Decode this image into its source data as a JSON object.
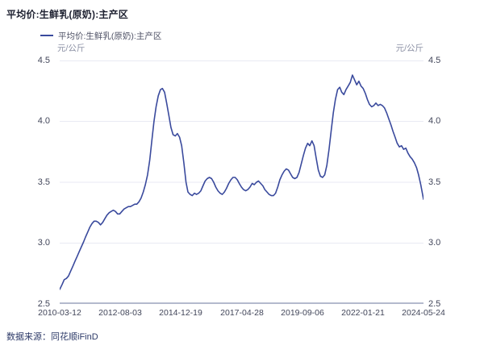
{
  "header": {
    "title": "平均价:生鲜乳(原奶):主产区"
  },
  "legend": {
    "label": "平均价:生鲜乳(原奶):主产区"
  },
  "units": {
    "left": "元/公斤",
    "right": "元/公斤"
  },
  "footer": {
    "source": "数据来源：同花顺iFinD"
  },
  "colors": {
    "line": "#3a4a9d",
    "title_text": "#1d2030",
    "legend_text": "#4f5266",
    "axis_text": "#42465a",
    "unit_text": "#8b90a4",
    "gridline": "#e9eaf3",
    "axis_line": "#b4bacd",
    "source_text": "#2d3a68"
  },
  "chart_data": {
    "type": "line",
    "title": "平均价:生鲜乳(原奶):主产区",
    "xlabel": "",
    "ylabel": "元/公斤",
    "ylim": [
      2.5,
      4.5
    ],
    "grid": true,
    "legend_position": "top-left",
    "y_ticks": [
      "4.5",
      "4.0",
      "3.5",
      "3.0",
      "2.5"
    ],
    "x_ticks": [
      "2010-03-12",
      "2012-08-03",
      "2014-12-19",
      "2017-04-28",
      "2019-09-06",
      "2022-01-21",
      "2024-05-24"
    ],
    "x_range": [
      "2010-03-12",
      "2024-05-24"
    ],
    "series": [
      {
        "name": "平均价:生鲜乳(原奶):主产区",
        "color": "#3a4a9d",
        "points": [
          [
            "2010-03-12",
            2.62
          ],
          [
            "2010-04-15",
            2.66
          ],
          [
            "2010-05-15",
            2.7
          ],
          [
            "2010-06-15",
            2.71
          ],
          [
            "2010-07-15",
            2.73
          ],
          [
            "2010-08-15",
            2.77
          ],
          [
            "2010-09-15",
            2.81
          ],
          [
            "2010-10-15",
            2.85
          ],
          [
            "2010-11-15",
            2.89
          ],
          [
            "2010-12-15",
            2.93
          ],
          [
            "2011-01-15",
            2.97
          ],
          [
            "2011-02-15",
            3.01
          ],
          [
            "2011-03-15",
            3.05
          ],
          [
            "2011-04-15",
            3.09
          ],
          [
            "2011-05-15",
            3.13
          ],
          [
            "2011-06-15",
            3.16
          ],
          [
            "2011-07-15",
            3.18
          ],
          [
            "2011-08-15",
            3.18
          ],
          [
            "2011-09-15",
            3.17
          ],
          [
            "2011-10-15",
            3.15
          ],
          [
            "2011-11-15",
            3.17
          ],
          [
            "2011-12-15",
            3.2
          ],
          [
            "2012-01-15",
            3.23
          ],
          [
            "2012-02-15",
            3.25
          ],
          [
            "2012-03-15",
            3.26
          ],
          [
            "2012-04-15",
            3.27
          ],
          [
            "2012-05-15",
            3.26
          ],
          [
            "2012-06-15",
            3.24
          ],
          [
            "2012-07-15",
            3.24
          ],
          [
            "2012-08-15",
            3.26
          ],
          [
            "2012-09-15",
            3.28
          ],
          [
            "2012-10-15",
            3.29
          ],
          [
            "2012-11-15",
            3.3
          ],
          [
            "2012-12-15",
            3.3
          ],
          [
            "2013-01-15",
            3.31
          ],
          [
            "2013-02-15",
            3.32
          ],
          [
            "2013-03-15",
            3.32
          ],
          [
            "2013-04-15",
            3.34
          ],
          [
            "2013-05-15",
            3.37
          ],
          [
            "2013-06-15",
            3.42
          ],
          [
            "2013-07-15",
            3.48
          ],
          [
            "2013-08-15",
            3.56
          ],
          [
            "2013-09-15",
            3.68
          ],
          [
            "2013-10-15",
            3.84
          ],
          [
            "2013-11-15",
            4.0
          ],
          [
            "2013-12-15",
            4.12
          ],
          [
            "2014-01-15",
            4.21
          ],
          [
            "2014-02-15",
            4.26
          ],
          [
            "2014-03-15",
            4.27
          ],
          [
            "2014-04-15",
            4.24
          ],
          [
            "2014-05-15",
            4.15
          ],
          [
            "2014-06-15",
            4.05
          ],
          [
            "2014-07-15",
            3.95
          ],
          [
            "2014-08-15",
            3.89
          ],
          [
            "2014-09-15",
            3.88
          ],
          [
            "2014-10-15",
            3.9
          ],
          [
            "2014-11-15",
            3.87
          ],
          [
            "2014-12-15",
            3.8
          ],
          [
            "2015-01-15",
            3.66
          ],
          [
            "2015-02-15",
            3.5
          ],
          [
            "2015-03-15",
            3.42
          ],
          [
            "2015-04-15",
            3.4
          ],
          [
            "2015-05-15",
            3.39
          ],
          [
            "2015-06-15",
            3.41
          ],
          [
            "2015-07-15",
            3.4
          ],
          [
            "2015-08-15",
            3.41
          ],
          [
            "2015-09-15",
            3.43
          ],
          [
            "2015-10-15",
            3.47
          ],
          [
            "2015-11-15",
            3.51
          ],
          [
            "2015-12-15",
            3.53
          ],
          [
            "2016-01-15",
            3.54
          ],
          [
            "2016-02-15",
            3.53
          ],
          [
            "2016-03-15",
            3.5
          ],
          [
            "2016-04-15",
            3.46
          ],
          [
            "2016-05-15",
            3.43
          ],
          [
            "2016-06-15",
            3.41
          ],
          [
            "2016-07-15",
            3.4
          ],
          [
            "2016-08-15",
            3.42
          ],
          [
            "2016-09-15",
            3.45
          ],
          [
            "2016-10-15",
            3.49
          ],
          [
            "2016-11-15",
            3.52
          ],
          [
            "2016-12-15",
            3.54
          ],
          [
            "2017-01-15",
            3.54
          ],
          [
            "2017-02-15",
            3.52
          ],
          [
            "2017-03-15",
            3.49
          ],
          [
            "2017-04-15",
            3.46
          ],
          [
            "2017-05-15",
            3.44
          ],
          [
            "2017-06-15",
            3.43
          ],
          [
            "2017-07-15",
            3.44
          ],
          [
            "2017-08-15",
            3.46
          ],
          [
            "2017-09-15",
            3.49
          ],
          [
            "2017-10-15",
            3.48
          ],
          [
            "2017-11-15",
            3.5
          ],
          [
            "2017-12-15",
            3.51
          ],
          [
            "2018-01-15",
            3.49
          ],
          [
            "2018-02-15",
            3.47
          ],
          [
            "2018-03-15",
            3.44
          ],
          [
            "2018-04-15",
            3.42
          ],
          [
            "2018-05-15",
            3.4
          ],
          [
            "2018-06-15",
            3.39
          ],
          [
            "2018-07-15",
            3.39
          ],
          [
            "2018-08-15",
            3.41
          ],
          [
            "2018-09-15",
            3.46
          ],
          [
            "2018-10-15",
            3.52
          ],
          [
            "2018-11-15",
            3.56
          ],
          [
            "2018-12-15",
            3.59
          ],
          [
            "2019-01-15",
            3.61
          ],
          [
            "2019-02-15",
            3.6
          ],
          [
            "2019-03-15",
            3.57
          ],
          [
            "2019-04-15",
            3.54
          ],
          [
            "2019-05-15",
            3.53
          ],
          [
            "2019-06-15",
            3.54
          ],
          [
            "2019-07-15",
            3.58
          ],
          [
            "2019-08-15",
            3.65
          ],
          [
            "2019-09-15",
            3.72
          ],
          [
            "2019-10-15",
            3.78
          ],
          [
            "2019-11-15",
            3.82
          ],
          [
            "2019-12-15",
            3.8
          ],
          [
            "2020-01-15",
            3.84
          ],
          [
            "2020-02-15",
            3.8
          ],
          [
            "2020-03-15",
            3.7
          ],
          [
            "2020-04-15",
            3.6
          ],
          [
            "2020-05-15",
            3.55
          ],
          [
            "2020-06-15",
            3.54
          ],
          [
            "2020-07-15",
            3.56
          ],
          [
            "2020-08-15",
            3.64
          ],
          [
            "2020-09-15",
            3.77
          ],
          [
            "2020-10-15",
            3.92
          ],
          [
            "2020-11-15",
            4.07
          ],
          [
            "2020-12-15",
            4.18
          ],
          [
            "2021-01-15",
            4.26
          ],
          [
            "2021-02-15",
            4.28
          ],
          [
            "2021-03-15",
            4.24
          ],
          [
            "2021-04-15",
            4.22
          ],
          [
            "2021-05-15",
            4.26
          ],
          [
            "2021-06-15",
            4.29
          ],
          [
            "2021-07-15",
            4.32
          ],
          [
            "2021-08-15",
            4.38
          ],
          [
            "2021-09-15",
            4.34
          ],
          [
            "2021-10-15",
            4.3
          ],
          [
            "2021-11-15",
            4.33
          ],
          [
            "2021-12-15",
            4.29
          ],
          [
            "2022-01-15",
            4.27
          ],
          [
            "2022-02-15",
            4.23
          ],
          [
            "2022-03-15",
            4.18
          ],
          [
            "2022-04-15",
            4.14
          ],
          [
            "2022-05-15",
            4.12
          ],
          [
            "2022-06-15",
            4.13
          ],
          [
            "2022-07-15",
            4.15
          ],
          [
            "2022-08-15",
            4.13
          ],
          [
            "2022-09-15",
            4.14
          ],
          [
            "2022-10-15",
            4.13
          ],
          [
            "2022-11-15",
            4.11
          ],
          [
            "2022-12-15",
            4.07
          ],
          [
            "2023-01-15",
            4.02
          ],
          [
            "2023-02-15",
            3.97
          ],
          [
            "2023-03-15",
            3.92
          ],
          [
            "2023-04-15",
            3.87
          ],
          [
            "2023-05-15",
            3.82
          ],
          [
            "2023-06-15",
            3.79
          ],
          [
            "2023-07-15",
            3.8
          ],
          [
            "2023-08-15",
            3.77
          ],
          [
            "2023-09-15",
            3.78
          ],
          [
            "2023-10-15",
            3.74
          ],
          [
            "2023-11-15",
            3.71
          ],
          [
            "2023-12-15",
            3.69
          ],
          [
            "2024-01-15",
            3.66
          ],
          [
            "2024-02-15",
            3.62
          ],
          [
            "2024-03-15",
            3.56
          ],
          [
            "2024-04-15",
            3.48
          ],
          [
            "2024-05-24",
            3.36
          ]
        ]
      }
    ]
  }
}
